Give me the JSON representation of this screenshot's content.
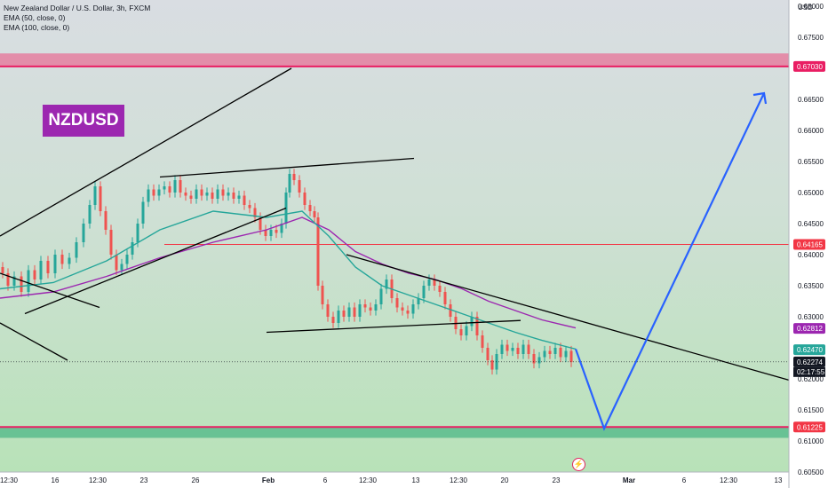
{
  "legend": {
    "title": "New Zealand Dollar / U.S. Dollar, 3h, FXCM",
    "ema50": "EMA (50, close, 0)",
    "ema100": "EMA (100, close, 0)"
  },
  "badge": "NZDUSD",
  "currency": "USD",
  "countdown": "02:17:55",
  "colors": {
    "up": "#26a69a",
    "down": "#ef5350",
    "ema50": "#26a69a",
    "ema100": "#9c27b0",
    "resistance": "#e91e63",
    "support": "#26a69a",
    "line": "#000000",
    "projection": "#2962ff"
  },
  "chart_data": {
    "type": "candlestick",
    "title": "New Zealand Dollar / U.S. Dollar, 3h, FXCM",
    "ylim": [
      0.605,
      0.681
    ],
    "y_ticks": [
      "0.68000",
      "0.67500",
      "0.66500",
      "0.66000",
      "0.65500",
      "0.65000",
      "0.64500",
      "0.64000",
      "0.63500",
      "0.63000",
      "0.62000",
      "0.61500",
      "0.61000",
      "0.60500"
    ],
    "x_ticks": [
      "12:30",
      "16",
      "12:30",
      "23",
      "26",
      "Feb",
      "6",
      "12:30",
      "13",
      "12:30",
      "20",
      "23",
      "Mar",
      "6",
      "12:30",
      "13"
    ],
    "price_tags": [
      {
        "label": "0.67030",
        "value": 0.6703,
        "color": "#e91e63"
      },
      {
        "label": "0.64165",
        "value": 0.64165,
        "color": "#f23645"
      },
      {
        "label": "0.62812",
        "value": 0.62812,
        "color": "#9c27b0"
      },
      {
        "label": "0.62470",
        "value": 0.6247,
        "color": "#26a69a"
      },
      {
        "label": "0.62274",
        "value": 0.62274,
        "color": "#131722"
      },
      {
        "label": "0.61225",
        "value": 0.61225,
        "color": "#f23645"
      }
    ],
    "resistance_zone": [
      0.6703,
      0.6724
    ],
    "support_zone": [
      0.6105,
      0.61225
    ],
    "horizontal_level": 0.64165,
    "close_path": [
      [
        0,
        0.638
      ],
      [
        6,
        0.637
      ],
      [
        12,
        0.635
      ],
      [
        20,
        0.6365
      ],
      [
        28,
        0.634
      ],
      [
        36,
        0.6375
      ],
      [
        42,
        0.636
      ],
      [
        50,
        0.639
      ],
      [
        58,
        0.637
      ],
      [
        66,
        0.64
      ],
      [
        74,
        0.6385
      ],
      [
        82,
        0.6395
      ],
      [
        90,
        0.642
      ],
      [
        98,
        0.645
      ],
      [
        104,
        0.648
      ],
      [
        110,
        0.651
      ],
      [
        116,
        0.647
      ],
      [
        122,
        0.644
      ],
      [
        128,
        0.64
      ],
      [
        134,
        0.6375
      ],
      [
        140,
        0.6385
      ],
      [
        146,
        0.64
      ],
      [
        152,
        0.642
      ],
      [
        158,
        0.645
      ],
      [
        164,
        0.6485
      ],
      [
        170,
        0.6505
      ],
      [
        176,
        0.6495
      ],
      [
        182,
        0.6505
      ],
      [
        188,
        0.651
      ],
      [
        194,
        0.65
      ],
      [
        200,
        0.652
      ],
      [
        206,
        0.65
      ],
      [
        212,
        0.6495
      ],
      [
        218,
        0.649
      ],
      [
        224,
        0.6505
      ],
      [
        230,
        0.6495
      ],
      [
        236,
        0.65
      ],
      [
        242,
        0.649
      ],
      [
        248,
        0.6505
      ],
      [
        254,
        0.6495
      ],
      [
        260,
        0.65
      ],
      [
        266,
        0.649
      ],
      [
        272,
        0.6495
      ],
      [
        278,
        0.648
      ],
      [
        284,
        0.6475
      ],
      [
        290,
        0.646
      ],
      [
        296,
        0.644
      ],
      [
        302,
        0.643
      ],
      [
        308,
        0.644
      ],
      [
        314,
        0.6435
      ],
      [
        320,
        0.645
      ],
      [
        324,
        0.65
      ],
      [
        328,
        0.653
      ],
      [
        334,
        0.652
      ],
      [
        340,
        0.65
      ],
      [
        346,
        0.648
      ],
      [
        352,
        0.647
      ],
      [
        356,
        0.646
      ],
      [
        360,
        0.635
      ],
      [
        366,
        0.632
      ],
      [
        372,
        0.63
      ],
      [
        378,
        0.629
      ],
      [
        384,
        0.631
      ],
      [
        390,
        0.63
      ],
      [
        396,
        0.6315
      ],
      [
        402,
        0.63
      ],
      [
        408,
        0.632
      ],
      [
        414,
        0.6315
      ],
      [
        420,
        0.631
      ],
      [
        426,
        0.632
      ],
      [
        432,
        0.6345
      ],
      [
        438,
        0.636
      ],
      [
        444,
        0.633
      ],
      [
        450,
        0.6315
      ],
      [
        456,
        0.631
      ],
      [
        462,
        0.6305
      ],
      [
        468,
        0.632
      ],
      [
        474,
        0.633
      ],
      [
        480,
        0.635
      ],
      [
        486,
        0.636
      ],
      [
        492,
        0.635
      ],
      [
        498,
        0.634
      ],
      [
        504,
        0.632
      ],
      [
        510,
        0.63
      ],
      [
        516,
        0.628
      ],
      [
        522,
        0.627
      ],
      [
        528,
        0.6285
      ],
      [
        534,
        0.63
      ],
      [
        540,
        0.627
      ],
      [
        546,
        0.625
      ],
      [
        552,
        0.623
      ],
      [
        556,
        0.6215
      ],
      [
        562,
        0.624
      ],
      [
        568,
        0.6255
      ],
      [
        574,
        0.6245
      ],
      [
        580,
        0.625
      ],
      [
        586,
        0.624
      ],
      [
        592,
        0.6255
      ],
      [
        598,
        0.624
      ],
      [
        604,
        0.6225
      ],
      [
        610,
        0.6235
      ],
      [
        616,
        0.6245
      ],
      [
        622,
        0.624
      ],
      [
        628,
        0.625
      ],
      [
        634,
        0.6235
      ],
      [
        640,
        0.6245
      ],
      [
        646,
        0.6227
      ]
    ],
    "ema50_path": [
      [
        0,
        0.6345
      ],
      [
        60,
        0.6355
      ],
      [
        120,
        0.639
      ],
      [
        180,
        0.644
      ],
      [
        240,
        0.647
      ],
      [
        300,
        0.646
      ],
      [
        340,
        0.647
      ],
      [
        370,
        0.643
      ],
      [
        400,
        0.638
      ],
      [
        430,
        0.635
      ],
      [
        460,
        0.6335
      ],
      [
        490,
        0.632
      ],
      [
        520,
        0.6305
      ],
      [
        550,
        0.629
      ],
      [
        580,
        0.6275
      ],
      [
        610,
        0.6262
      ],
      [
        648,
        0.6248
      ]
    ],
    "ema100_path": [
      [
        0,
        0.633
      ],
      [
        60,
        0.634
      ],
      [
        120,
        0.6365
      ],
      [
        180,
        0.6395
      ],
      [
        240,
        0.642
      ],
      [
        300,
        0.644
      ],
      [
        340,
        0.646
      ],
      [
        370,
        0.644
      ],
      [
        400,
        0.6405
      ],
      [
        430,
        0.6385
      ],
      [
        460,
        0.637
      ],
      [
        490,
        0.636
      ],
      [
        520,
        0.6345
      ],
      [
        550,
        0.6325
      ],
      [
        580,
        0.631
      ],
      [
        610,
        0.6295
      ],
      [
        648,
        0.6282
      ]
    ],
    "trendlines": [
      {
        "from": [
          0,
          0.643
        ],
        "to": [
          328,
          0.67
        ]
      },
      {
        "from": [
          28,
          0.6305
        ],
        "to": [
          322,
          0.6475
        ]
      },
      {
        "from": [
          0,
          0.637
        ],
        "to": [
          112,
          0.6315
        ]
      },
      {
        "from": [
          0,
          0.629
        ],
        "to": [
          76,
          0.623
        ]
      },
      {
        "from": [
          180,
          0.6525
        ],
        "to": [
          466,
          0.6555
        ]
      },
      {
        "from": [
          390,
          0.64
        ],
        "to": [
          888,
          0.6198
        ]
      },
      {
        "from": [
          300,
          0.6275
        ],
        "to": [
          586,
          0.6294
        ]
      }
    ],
    "projection": [
      [
        648,
        0.6248
      ],
      [
        680,
        0.612
      ],
      [
        860,
        0.666
      ]
    ]
  }
}
